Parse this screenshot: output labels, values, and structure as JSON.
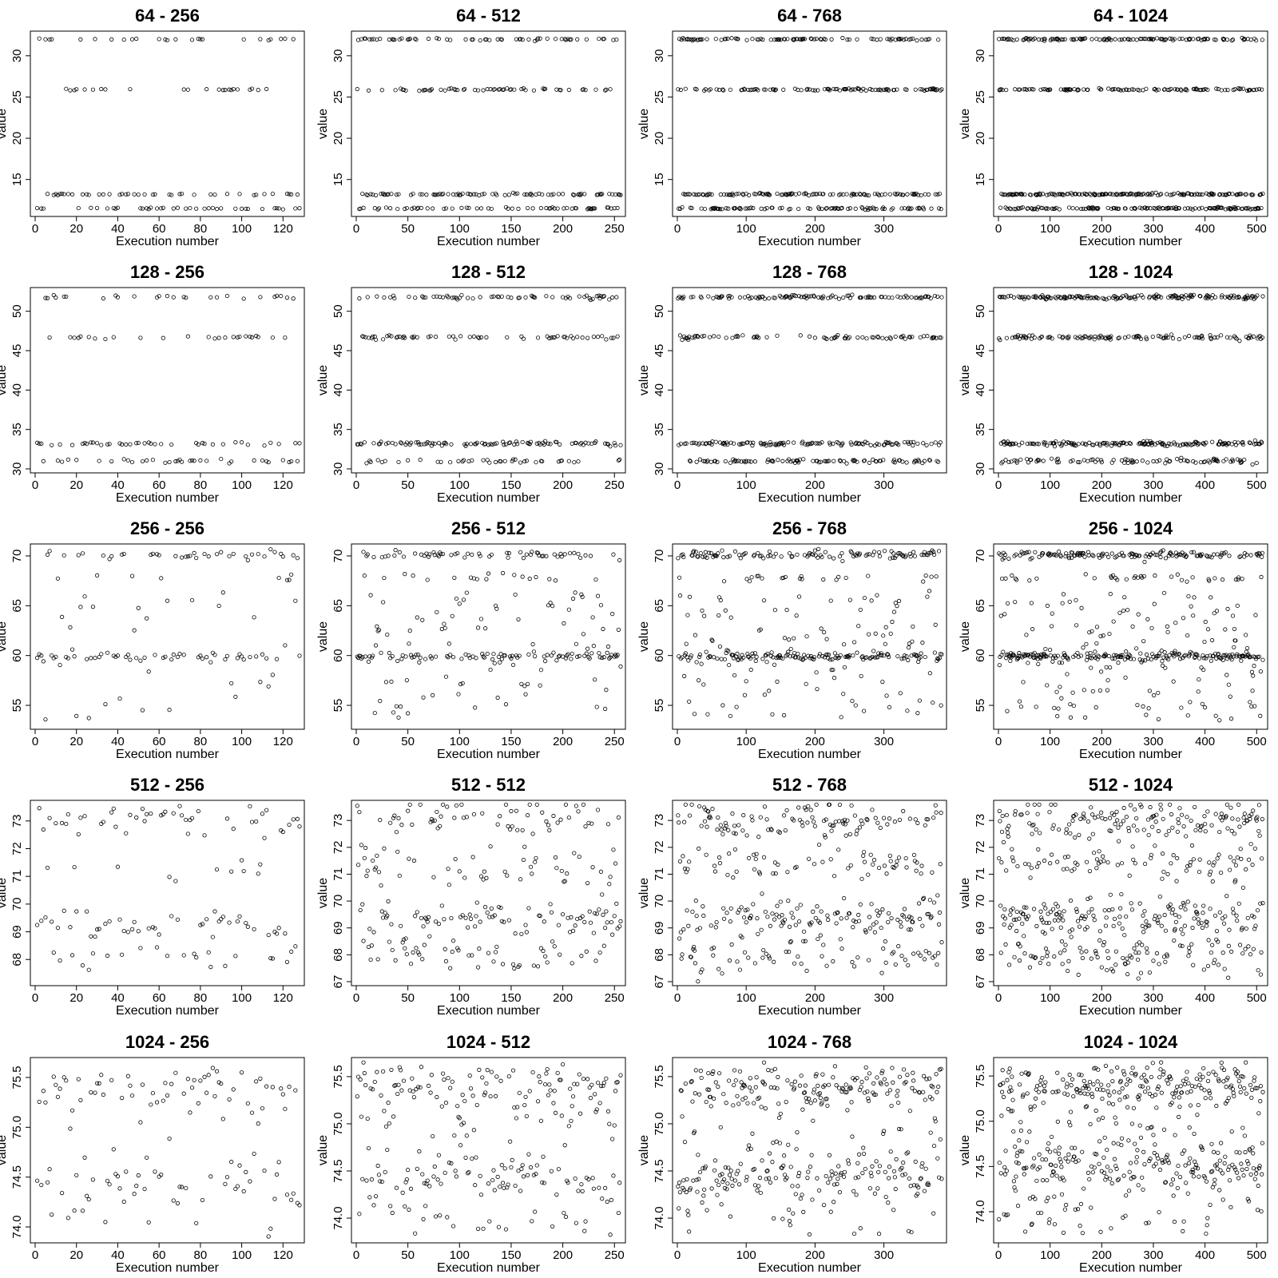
{
  "chart_data": [
    {
      "type": "scatter",
      "title": "64  -  256",
      "xlabel": "Execution number",
      "ylabel": "value",
      "xlim": [
        0,
        128
      ],
      "ylim": [
        11,
        32.5
      ],
      "xticks": [
        0,
        20,
        40,
        60,
        80,
        100,
        120
      ],
      "yticks": [
        15,
        20,
        25,
        30
      ],
      "levels": [
        11.5,
        13.2,
        25.9,
        32.0
      ],
      "level_weights": [
        0.3,
        0.35,
        0.2,
        0.15
      ],
      "jitter": 0.05,
      "n": 128
    },
    {
      "type": "scatter",
      "title": "64  -  512",
      "xlabel": "Execution number",
      "ylabel": "value",
      "xlim": [
        0,
        256
      ],
      "ylim": [
        11,
        32.5
      ],
      "xticks": [
        0,
        50,
        100,
        150,
        200,
        250
      ],
      "yticks": [
        15,
        20,
        25,
        30
      ],
      "levels": [
        11.5,
        13.2,
        25.9,
        32.0
      ],
      "level_weights": [
        0.25,
        0.3,
        0.2,
        0.25
      ],
      "jitter": 0.06,
      "n": 256
    },
    {
      "type": "scatter",
      "title": "64  -  768",
      "xlabel": "Execution number",
      "ylabel": "value",
      "xlim": [
        0,
        384
      ],
      "ylim": [
        11,
        32.5
      ],
      "xticks": [
        0,
        100,
        200,
        300
      ],
      "yticks": [
        15,
        20,
        25,
        30
      ],
      "levels": [
        11.5,
        13.2,
        25.9,
        32.0
      ],
      "level_weights": [
        0.25,
        0.3,
        0.22,
        0.23
      ],
      "jitter": 0.06,
      "n": 384
    },
    {
      "type": "scatter",
      "title": "64  -  1024",
      "xlabel": "Execution number",
      "ylabel": "value",
      "xlim": [
        0,
        512
      ],
      "ylim": [
        11,
        32.5
      ],
      "xticks": [
        0,
        100,
        200,
        300,
        400,
        500
      ],
      "yticks": [
        15,
        20,
        25,
        30
      ],
      "levels": [
        11.5,
        13.2,
        25.9,
        32.0
      ],
      "level_weights": [
        0.25,
        0.3,
        0.2,
        0.25
      ],
      "jitter": 0.06,
      "n": 512
    },
    {
      "type": "scatter",
      "title": "128  -  256",
      "xlabel": "Execution number",
      "ylabel": "value",
      "xlim": [
        0,
        128
      ],
      "ylim": [
        30,
        52.5
      ],
      "xticks": [
        0,
        20,
        40,
        60,
        80,
        100,
        120
      ],
      "yticks": [
        30,
        35,
        40,
        45,
        50
      ],
      "levels": [
        31.0,
        33.2,
        46.7,
        51.8
      ],
      "level_weights": [
        0.25,
        0.35,
        0.2,
        0.2
      ],
      "jitter": 0.12,
      "n": 128
    },
    {
      "type": "scatter",
      "title": "128  -  512",
      "xlabel": "Execution number",
      "ylabel": "value",
      "xlim": [
        0,
        256
      ],
      "ylim": [
        30,
        52.5
      ],
      "xticks": [
        0,
        50,
        100,
        150,
        200,
        250
      ],
      "yticks": [
        30,
        35,
        40,
        45,
        50
      ],
      "levels": [
        31.0,
        33.2,
        46.7,
        51.8
      ],
      "level_weights": [
        0.22,
        0.3,
        0.2,
        0.28
      ],
      "jitter": 0.12,
      "n": 256
    },
    {
      "type": "scatter",
      "title": "128  -  768",
      "xlabel": "Execution number",
      "ylabel": "value",
      "xlim": [
        0,
        384
      ],
      "ylim": [
        30,
        52.5
      ],
      "xticks": [
        0,
        100,
        200,
        300
      ],
      "yticks": [
        30,
        35,
        40,
        45,
        50
      ],
      "levels": [
        31.0,
        33.2,
        46.7,
        51.8
      ],
      "level_weights": [
        0.22,
        0.3,
        0.2,
        0.28
      ],
      "jitter": 0.12,
      "n": 384
    },
    {
      "type": "scatter",
      "title": "128  -  1024",
      "xlabel": "Execution number",
      "ylabel": "value",
      "xlim": [
        0,
        512
      ],
      "ylim": [
        30,
        52.5
      ],
      "xticks": [
        0,
        100,
        200,
        300,
        400,
        500
      ],
      "yticks": [
        30,
        35,
        40,
        45,
        50
      ],
      "levels": [
        31.0,
        33.2,
        46.7,
        51.8
      ],
      "level_weights": [
        0.2,
        0.3,
        0.2,
        0.3
      ],
      "jitter": 0.14,
      "n": 512
    },
    {
      "type": "scatter",
      "title": "256  -  256",
      "xlabel": "Execution number",
      "ylabel": "value",
      "xlim": [
        0,
        128
      ],
      "ylim": [
        53,
        70.8
      ],
      "xticks": [
        0,
        20,
        40,
        60,
        80,
        100,
        120
      ],
      "yticks": [
        55,
        60,
        65,
        70
      ],
      "levels": [
        59.9,
        70.1,
        67.8
      ],
      "level_weights": [
        0.38,
        0.3,
        0.07
      ],
      "uniform_weight": 0.25,
      "uniform_range": [
        53.5,
        66.5
      ],
      "jitter": 0.18,
      "n": 128
    },
    {
      "type": "scatter",
      "title": "256  -  512",
      "xlabel": "Execution number",
      "ylabel": "value",
      "xlim": [
        0,
        256
      ],
      "ylim": [
        53,
        70.8
      ],
      "xticks": [
        0,
        50,
        100,
        150,
        200,
        250
      ],
      "yticks": [
        55,
        60,
        65,
        70
      ],
      "levels": [
        59.9,
        70.1,
        67.8
      ],
      "level_weights": [
        0.33,
        0.3,
        0.07
      ],
      "uniform_weight": 0.3,
      "uniform_range": [
        53.5,
        66.5
      ],
      "jitter": 0.18,
      "n": 256
    },
    {
      "type": "scatter",
      "title": "256  -  768",
      "xlabel": "Execution number",
      "ylabel": "value",
      "xlim": [
        0,
        384
      ],
      "ylim": [
        53,
        70.8
      ],
      "xticks": [
        0,
        100,
        200,
        300
      ],
      "yticks": [
        55,
        60,
        65,
        70
      ],
      "levels": [
        59.9,
        70.1,
        67.8
      ],
      "level_weights": [
        0.35,
        0.3,
        0.07
      ],
      "uniform_weight": 0.28,
      "uniform_range": [
        53.5,
        66.5
      ],
      "jitter": 0.2,
      "n": 384
    },
    {
      "type": "scatter",
      "title": "256  -  1024",
      "xlabel": "Execution number",
      "ylabel": "value",
      "xlim": [
        0,
        512
      ],
      "ylim": [
        53,
        70.8
      ],
      "xticks": [
        0,
        100,
        200,
        300,
        400,
        500
      ],
      "yticks": [
        55,
        60,
        65,
        70
      ],
      "levels": [
        59.9,
        70.1,
        67.8
      ],
      "level_weights": [
        0.33,
        0.32,
        0.07
      ],
      "uniform_weight": 0.28,
      "uniform_range": [
        53.5,
        66.5
      ],
      "jitter": 0.2,
      "n": 512
    },
    {
      "type": "scatter",
      "title": "512  -  256",
      "xlabel": "Execution number",
      "ylabel": "value",
      "xlim": [
        0,
        128
      ],
      "ylim": [
        67.2,
        73.6
      ],
      "xticks": [
        0,
        20,
        40,
        60,
        80,
        100,
        120
      ],
      "yticks": [
        68,
        69,
        70,
        71,
        72,
        73
      ],
      "levels": [
        73.1,
        71.3,
        69.2,
        68.0
      ],
      "level_weights": [
        0.3,
        0.15,
        0.3,
        0.25
      ],
      "jitter": 0.28,
      "n": 128
    },
    {
      "type": "scatter",
      "title": "512  -  512",
      "xlabel": "Execution number",
      "ylabel": "value",
      "xlim": [
        0,
        256
      ],
      "ylim": [
        67,
        73.6
      ],
      "xticks": [
        0,
        50,
        100,
        150,
        200,
        250
      ],
      "yticks": [
        67,
        68,
        69,
        70,
        71,
        72,
        73
      ],
      "levels": [
        73.1,
        71.3,
        69.4,
        68.0
      ],
      "level_weights": [
        0.28,
        0.17,
        0.32,
        0.23
      ],
      "jitter": 0.35,
      "n": 256
    },
    {
      "type": "scatter",
      "title": "512  -  768",
      "xlabel": "Execution number",
      "ylabel": "value",
      "xlim": [
        0,
        384
      ],
      "ylim": [
        67,
        73.6
      ],
      "xticks": [
        0,
        100,
        200,
        300
      ],
      "yticks": [
        67,
        68,
        69,
        70,
        71,
        72,
        73
      ],
      "levels": [
        73.0,
        71.4,
        69.4,
        68.0
      ],
      "level_weights": [
        0.27,
        0.18,
        0.33,
        0.22
      ],
      "jitter": 0.35,
      "n": 384
    },
    {
      "type": "scatter",
      "title": "512  -  1024",
      "xlabel": "Execution number",
      "ylabel": "value",
      "xlim": [
        0,
        512
      ],
      "ylim": [
        67,
        73.6
      ],
      "xticks": [
        0,
        100,
        200,
        300,
        400,
        500
      ],
      "yticks": [
        67,
        68,
        69,
        70,
        71,
        72,
        73
      ],
      "levels": [
        73.0,
        71.4,
        69.4,
        68.0
      ],
      "level_weights": [
        0.28,
        0.18,
        0.32,
        0.22
      ],
      "jitter": 0.38,
      "n": 512
    },
    {
      "type": "scatter",
      "title": "1024  -  256",
      "xlabel": "Execution number",
      "ylabel": "value",
      "xlim": [
        0,
        128
      ],
      "ylim": [
        73.88,
        75.66
      ],
      "xticks": [
        0,
        20,
        40,
        60,
        80,
        100,
        120
      ],
      "yticks": [
        74.0,
        74.5,
        75.0,
        75.5
      ],
      "levels": [
        75.4,
        74.45
      ],
      "level_weights": [
        0.35,
        0.3
      ],
      "uniform_weight": 0.35,
      "uniform_range": [
        73.9,
        75.6
      ],
      "jitter": 0.1,
      "n": 128
    },
    {
      "type": "scatter",
      "title": "1024  -  512",
      "xlabel": "Execution number",
      "ylabel": "value",
      "xlim": [
        0,
        256
      ],
      "ylim": [
        73.78,
        75.66
      ],
      "xticks": [
        0,
        50,
        100,
        150,
        200,
        250
      ],
      "yticks": [
        74.0,
        74.5,
        75.0,
        75.5
      ],
      "levels": [
        75.4,
        74.45
      ],
      "level_weights": [
        0.3,
        0.3
      ],
      "uniform_weight": 0.4,
      "uniform_range": [
        73.8,
        75.6
      ],
      "jitter": 0.1,
      "n": 256
    },
    {
      "type": "scatter",
      "title": "1024  -  768",
      "xlabel": "Execution number",
      "ylabel": "value",
      "xlim": [
        0,
        384
      ],
      "ylim": [
        73.78,
        75.66
      ],
      "xticks": [
        0,
        100,
        200,
        300
      ],
      "yticks": [
        74.0,
        74.5,
        75.0,
        75.5
      ],
      "levels": [
        75.4,
        74.45
      ],
      "level_weights": [
        0.33,
        0.32
      ],
      "uniform_weight": 0.35,
      "uniform_range": [
        73.8,
        75.6
      ],
      "jitter": 0.11,
      "n": 384
    },
    {
      "type": "scatter",
      "title": "1024  -  1024",
      "xlabel": "Execution number",
      "ylabel": "value",
      "xlim": [
        0,
        512
      ],
      "ylim": [
        73.7,
        75.66
      ],
      "xticks": [
        0,
        100,
        200,
        300,
        400,
        500
      ],
      "yticks": [
        74.0,
        74.5,
        75.0,
        75.5
      ],
      "levels": [
        75.4,
        74.5
      ],
      "level_weights": [
        0.33,
        0.32
      ],
      "uniform_weight": 0.35,
      "uniform_range": [
        73.75,
        75.6
      ],
      "jitter": 0.12,
      "n": 512
    }
  ]
}
